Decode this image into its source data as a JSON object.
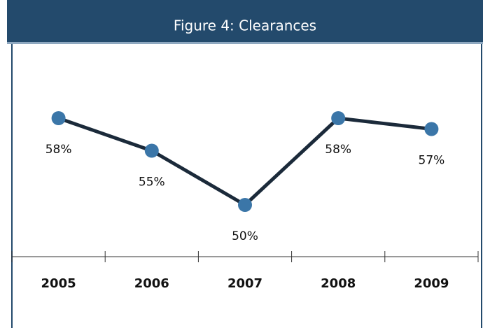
{
  "chart_data": {
    "type": "line",
    "title": "Figure 4: Clearances",
    "categories": [
      "2005",
      "2006",
      "2007",
      "2008",
      "2009"
    ],
    "values": [
      58,
      55,
      50,
      58,
      57
    ],
    "value_labels": [
      "58%",
      "55%",
      "50%",
      "58%",
      "57%"
    ],
    "color": "#1b2a3a",
    "marker_color": "#3b76a8"
  }
}
